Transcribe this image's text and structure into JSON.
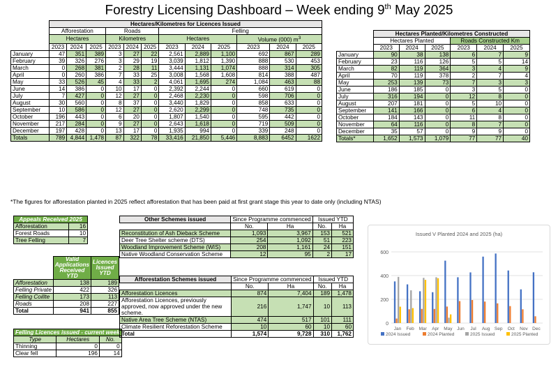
{
  "title_main": "Forestry Licensing Dashboard – Week ending 9",
  "title_sup": "th",
  "title_end": " May 2025",
  "main": {
    "band_header": "Hectares/Kilometres for Licences Issued",
    "afforestation": "Afforestation",
    "roads": "Roads",
    "felling": "Felling",
    "hectares": "Hectares",
    "kilometres": "Kilometres",
    "volume": "Volume (000) m",
    "volume_sup": "3",
    "years": [
      "2023",
      "2024",
      "2025"
    ],
    "rows": [
      {
        "m": "January",
        "a": [
          "47",
          "351",
          "389"
        ],
        "r": [
          "3",
          "27",
          "22"
        ],
        "fh": [
          "2,561",
          "2,889",
          "1,100"
        ],
        "fv": [
          "692",
          "867",
          "289"
        ]
      },
      {
        "m": "February",
        "a": [
          "39",
          "326",
          "276"
        ],
        "r": [
          "3",
          "29",
          "19"
        ],
        "fh": [
          "3,039",
          "1,812",
          "1,390"
        ],
        "fv": [
          "888",
          "530",
          "453"
        ]
      },
      {
        "m": "March",
        "a": [
          "0",
          "268",
          "381"
        ],
        "r": [
          "2",
          "28",
          "11"
        ],
        "fh": [
          "3,444",
          "1,131",
          "1,074"
        ],
        "fv": [
          "888",
          "314",
          "305"
        ]
      },
      {
        "m": "April",
        "a": [
          "0",
          "260",
          "386"
        ],
        "r": [
          "7",
          "33",
          "25"
        ],
        "fh": [
          "3,008",
          "1,568",
          "1,608"
        ],
        "fv": [
          "814",
          "388",
          "487"
        ]
      },
      {
        "m": "May",
        "a": [
          "33",
          "526",
          "45"
        ],
        "r": [
          "4",
          "33",
          "2"
        ],
        "fh": [
          "4,061",
          "1,695",
          "274"
        ],
        "fv": [
          "1,084",
          "463",
          "88"
        ]
      },
      {
        "m": "June",
        "a": [
          "14",
          "386",
          "0"
        ],
        "r": [
          "10",
          "17",
          "0"
        ],
        "fh": [
          "2,392",
          "2,244",
          "0"
        ],
        "fv": [
          "660",
          "619",
          "0"
        ]
      },
      {
        "m": "July",
        "a": [
          "7",
          "427",
          "0"
        ],
        "r": [
          "12",
          "27",
          "0"
        ],
        "fh": [
          "2,468",
          "2,230",
          "0"
        ],
        "fv": [
          "598",
          "706",
          "0"
        ]
      },
      {
        "m": "August",
        "a": [
          "30",
          "560",
          "0"
        ],
        "r": [
          "8",
          "37",
          "0"
        ],
        "fh": [
          "3,440",
          "1,829",
          "0"
        ],
        "fv": [
          "858",
          "633",
          "0"
        ]
      },
      {
        "m": "September",
        "a": [
          "10",
          "586",
          "0"
        ],
        "r": [
          "12",
          "27",
          "0"
        ],
        "fh": [
          "2,620",
          "2,299",
          "0"
        ],
        "fv": [
          "748",
          "735",
          "0"
        ]
      },
      {
        "m": "October",
        "a": [
          "196",
          "443",
          "0"
        ],
        "r": [
          "6",
          "20",
          "0"
        ],
        "fh": [
          "1,807",
          "1,540",
          "0"
        ],
        "fv": [
          "595",
          "442",
          "0"
        ]
      },
      {
        "m": "November",
        "a": [
          "217",
          "284",
          "0"
        ],
        "r": [
          "9",
          "27",
          "0"
        ],
        "fh": [
          "2,643",
          "1,618",
          "0"
        ],
        "fv": [
          "719",
          "509",
          "0"
        ]
      },
      {
        "m": "December",
        "a": [
          "197",
          "428",
          "0"
        ],
        "r": [
          "13",
          "17",
          "0"
        ],
        "fh": [
          "1,935",
          "994",
          "0"
        ],
        "fv": [
          "339",
          "248",
          "0"
        ]
      }
    ],
    "totals": {
      "m": "Totals",
      "a": [
        "789",
        "4,844",
        "1,478"
      ],
      "r": [
        "87",
        "322",
        "78"
      ],
      "fh": [
        "33,416",
        "21,850",
        "5,446"
      ],
      "fv": [
        "8,883",
        "6452",
        "1622"
      ]
    }
  },
  "planted": {
    "header": "Hectares Planted/Kilometres Constructed",
    "hp": "Hectares Planted",
    "rc": "Roads Constructed Km",
    "years": [
      "2023",
      "2024",
      "2025"
    ],
    "rows": [
      {
        "m": "January",
        "h": [
          "90",
          "38",
          "138"
        ],
        "k": [
          "6",
          "7",
          "9"
        ]
      },
      {
        "m": "February",
        "h": [
          "23",
          "116",
          "126"
        ],
        "k": [
          "5",
          "5",
          "14"
        ]
      },
      {
        "m": "March",
        "h": [
          "82",
          "119",
          "364"
        ],
        "k": [
          "3",
          "4",
          "9"
        ]
      },
      {
        "m": "April",
        "h": [
          "70",
          "119",
          "378"
        ],
        "k": [
          "2",
          "7",
          "4"
        ]
      },
      {
        "m": "May",
        "h": [
          "253",
          "139",
          "73"
        ],
        "k": [
          "7",
          "3",
          "3"
        ]
      },
      {
        "m": "June",
        "h": [
          "186",
          "185",
          "0"
        ],
        "k": [
          "3",
          "5",
          "0"
        ]
      },
      {
        "m": "July",
        "h": [
          "316",
          "194",
          "0"
        ],
        "k": [
          "12",
          "8",
          "0"
        ]
      },
      {
        "m": "August",
        "h": [
          "207",
          "181",
          "0"
        ],
        "k": [
          "5",
          "10",
          "0"
        ]
      },
      {
        "m": "September",
        "h": [
          "141",
          "166",
          "0"
        ],
        "k": [
          "6",
          "4",
          "0"
        ]
      },
      {
        "m": "October",
        "h": [
          "184",
          "143",
          "0"
        ],
        "k": [
          "11",
          "8",
          "0"
        ]
      },
      {
        "m": "November",
        "h": [
          "64",
          "116",
          "0"
        ],
        "k": [
          "8",
          "7",
          "0"
        ]
      },
      {
        "m": "December",
        "h": [
          "35",
          "57",
          "0"
        ],
        "k": [
          "9",
          "9",
          "0"
        ]
      }
    ],
    "totals": {
      "m": "Totals*",
      "h": [
        "1,652",
        "1,573",
        "1,079"
      ],
      "k": [
        "77",
        "77",
        "40"
      ]
    }
  },
  "note": "*The figures for afforestation planted in 2025 reflect afforestation that has been paid at first grant stage this year to date only (including NTAS)",
  "appeals": {
    "header": "Appeals Received 2025",
    "rows": [
      {
        "l": "Afforestation",
        "v": "16"
      },
      {
        "l": "Forest Roads",
        "v": "10"
      },
      {
        "l": "Tree Felling",
        "v": "7"
      }
    ]
  },
  "valid": {
    "h1": "Valid Applications Received YTD",
    "h2": "Licences Issued YTD",
    "rows": [
      {
        "l": "Afforestation",
        "a": "138",
        "b": "189"
      },
      {
        "l": "Felling Private",
        "a": "422",
        "b": "326"
      },
      {
        "l": "Felling Coillte",
        "a": "173",
        "b": "113"
      },
      {
        "l": "Roads",
        "a": "208",
        "b": "227"
      }
    ],
    "total": {
      "l": "Total",
      "a": "941",
      "b": "855"
    }
  },
  "felling_week": {
    "header": "Felling Licences issued - current week",
    "cols": [
      "Type",
      "Hectares",
      "No."
    ],
    "rows": [
      {
        "t": "Thinning",
        "h": "0",
        "n": "0"
      },
      {
        "t": "Clear fell",
        "h": "196",
        "n": "14"
      }
    ]
  },
  "other": {
    "header": "Other Schemes issued",
    "since": "Since Programme commenced",
    "ytd": "Issued YTD",
    "no": "No.",
    "ha": "Ha",
    "rows": [
      {
        "l": "Reconstitution of Ash Dieback Scheme",
        "a": "1,093",
        "b": "3,967",
        "c": "153",
        "d": "521"
      },
      {
        "l": "Deer Tree Shelter scheme (DTS)",
        "a": "254",
        "b": "1,092",
        "c": "51",
        "d": "223"
      },
      {
        "l": "Woodland Improvement Scheme (WIS)",
        "a": "208",
        "b": "1,161",
        "c": "24",
        "d": "151"
      },
      {
        "l": "Native Woodland Conservation Scheme",
        "a": "12",
        "b": "95",
        "c": "2",
        "d": "17"
      }
    ]
  },
  "aff_schemes": {
    "header": "Afforestation Schemes issued",
    "since": "Since Programme commenced",
    "ytd": "Issued YTD",
    "no": "No.",
    "ha": "Ha",
    "rows": [
      {
        "l": "Afforestation Licences",
        "a": "874",
        "b": "7,404",
        "c": "189",
        "d": "1,478"
      },
      {
        "l": "Afforestation Licences, previously approved, now approved under the new scheme.",
        "a": "216",
        "b": "1,747",
        "c": "10",
        "d": "113"
      },
      {
        "l": "Native Area Tree Scheme (NTAS)",
        "a": "474",
        "b": "517",
        "c": "101",
        "d": "111"
      },
      {
        "l": "Climate Resilient Reforestation Scheme",
        "a": "10",
        "b": "60",
        "c": "10",
        "d": "60"
      }
    ],
    "total": {
      "l": "Total",
      "a": "1,574",
      "b": "9,728",
      "c": "310",
      "d": "1,762"
    }
  },
  "chart_data": {
    "type": "bar",
    "title": "Issued V Planted 2024 and 2025 (ha)",
    "categories": [
      "Jan",
      "Feb",
      "Mar",
      "Apr",
      "May",
      "Jun",
      "Jul",
      "Aug",
      "Sep",
      "Oct",
      "Nov",
      "Dec"
    ],
    "ylim": [
      0,
      600
    ],
    "yticks": [
      "0",
      "200",
      "400",
      "600"
    ],
    "legend_position": "bottom",
    "colors": [
      "#4472c4",
      "#ed7d31",
      "#a5a5a5",
      "#ffc000"
    ],
    "series": [
      {
        "name": "2024 Issued",
        "values": [
          351,
          326,
          268,
          260,
          526,
          386,
          427,
          560,
          586,
          443,
          284,
          428
        ]
      },
      {
        "name": "2024 Planted",
        "values": [
          38,
          116,
          119,
          119,
          139,
          185,
          194,
          181,
          166,
          143,
          116,
          57
        ]
      },
      {
        "name": "2025 Issued",
        "values": [
          389,
          276,
          381,
          386,
          45,
          0,
          0,
          0,
          0,
          0,
          0,
          0
        ]
      },
      {
        "name": "2025 Planted",
        "values": [
          138,
          126,
          364,
          378,
          73,
          0,
          0,
          0,
          0,
          0,
          0,
          0
        ]
      }
    ]
  }
}
